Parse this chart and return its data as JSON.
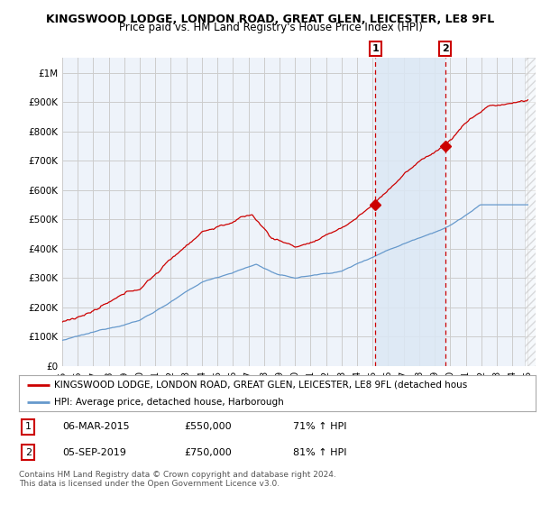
{
  "title1": "KINGSWOOD LODGE, LONDON ROAD, GREAT GLEN, LEICESTER, LE8 9FL",
  "title2": "Price paid vs. HM Land Registry's House Price Index (HPI)",
  "ylabel_ticks": [
    "£0",
    "£100K",
    "£200K",
    "£300K",
    "£400K",
    "£500K",
    "£600K",
    "£700K",
    "£800K",
    "£900K",
    "£1M"
  ],
  "ytick_vals": [
    0,
    100000,
    200000,
    300000,
    400000,
    500000,
    600000,
    700000,
    800000,
    900000,
    1000000
  ],
  "ylim": [
    0,
    1050000
  ],
  "x_start_year": 1995,
  "x_end_year": 2025,
  "marker1_year": 2015.17,
  "marker1_price": 550000,
  "marker1_label": "1",
  "marker2_year": 2019.67,
  "marker2_price": 750000,
  "marker2_label": "2",
  "red_line_color": "#cc0000",
  "blue_line_color": "#6699cc",
  "marker_box_color": "#cc0000",
  "vline_color": "#cc0000",
  "background_color": "#ffffff",
  "plot_bg_color": "#eef3fa",
  "grid_color": "#cccccc",
  "highlight_color": "#dce8f5",
  "legend_label_red": "KINGSWOOD LODGE, LONDON ROAD, GREAT GLEN, LEICESTER, LE8 9FL (detached hous",
  "legend_label_blue": "HPI: Average price, detached house, Harborough",
  "table_rows": [
    {
      "num": "1",
      "date": "06-MAR-2015",
      "price": "£550,000",
      "hpi": "71% ↑ HPI"
    },
    {
      "num": "2",
      "date": "05-SEP-2019",
      "price": "£750,000",
      "hpi": "81% ↑ HPI"
    }
  ],
  "footer": "Contains HM Land Registry data © Crown copyright and database right 2024.\nThis data is licensed under the Open Government Licence v3.0.",
  "title1_fontsize": 9,
  "title2_fontsize": 8.5,
  "tick_fontsize": 7.5,
  "legend_fontsize": 7.5,
  "table_fontsize": 8,
  "footer_fontsize": 6.5
}
